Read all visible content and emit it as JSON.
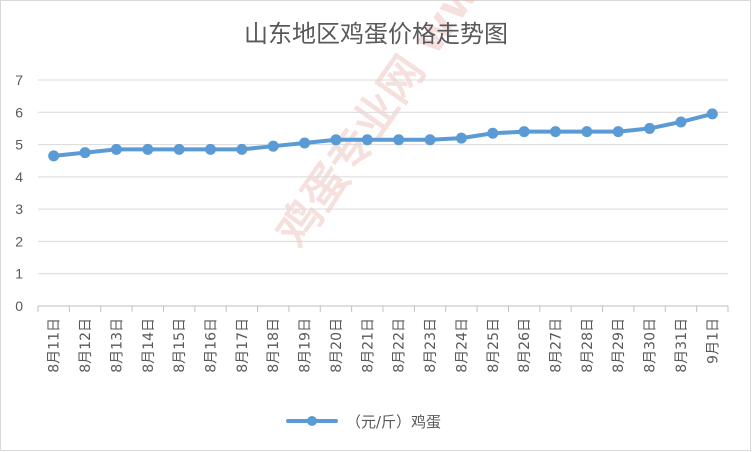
{
  "chart_data": {
    "type": "line",
    "title": "山东地区鸡蛋价格走势图",
    "categories": [
      "8月11日",
      "8月12日",
      "8月13日",
      "8月14日",
      "8月15日",
      "8月16日",
      "8月17日",
      "8月18日",
      "8月19日",
      "8月20日",
      "8月21日",
      "8月22日",
      "8月23日",
      "8月24日",
      "8月25日",
      "8月26日",
      "8月27日",
      "8月28日",
      "8月29日",
      "8月30日",
      "8月31日",
      "9月1日"
    ],
    "series": [
      {
        "name": "（元/斤）鸡蛋",
        "color": "#5b9bd5",
        "values": [
          4.65,
          4.75,
          4.85,
          4.85,
          4.85,
          4.85,
          4.85,
          4.95,
          5.05,
          5.15,
          5.15,
          5.15,
          5.15,
          5.2,
          5.35,
          5.4,
          5.4,
          5.4,
          5.4,
          5.5,
          5.7,
          5.95
        ]
      }
    ],
    "xlabel": "",
    "ylabel": "",
    "ylim": [
      0,
      7
    ],
    "yticks": [
      "0",
      "1",
      "2",
      "3",
      "4",
      "5",
      "6",
      "7"
    ],
    "grid": true,
    "legend": "bottom",
    "watermark": "鸡蛋专业网 www.jdw.com"
  }
}
